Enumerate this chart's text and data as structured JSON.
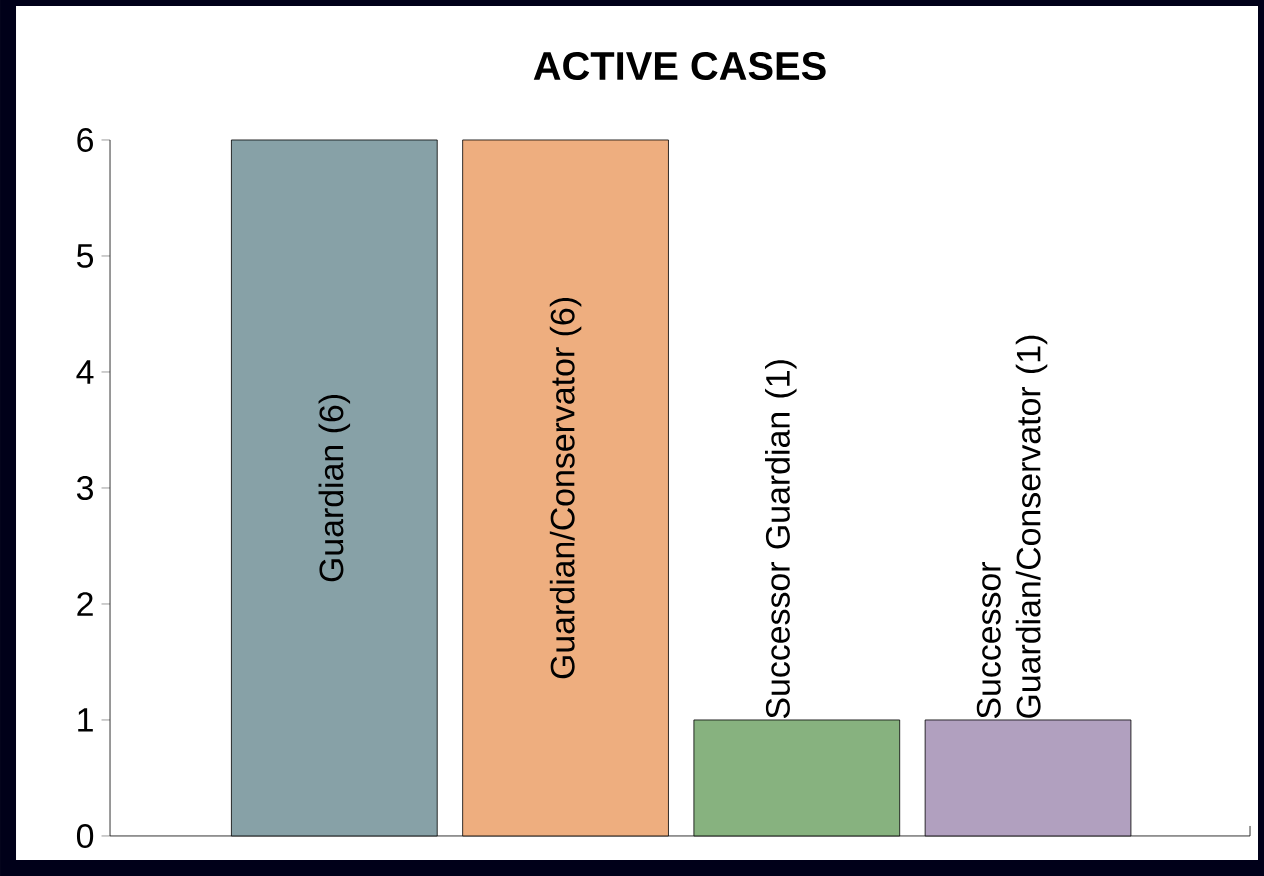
{
  "chart_data": {
    "type": "bar",
    "title": "ACTIVE CASES",
    "categories": [
      "Guardian (6)",
      "Guardian/Conservator (6)",
      "Successor Guardian (1)",
      "Successor Guardian/Conservator (1)"
    ],
    "values": [
      6,
      6,
      1,
      1
    ],
    "colors": [
      "#87a1a7",
      "#eeae7f",
      "#87b27f",
      "#b1a0bf"
    ],
    "ylim": [
      0,
      6
    ],
    "yticks": [
      0,
      1,
      2,
      3,
      4,
      5,
      6
    ]
  }
}
